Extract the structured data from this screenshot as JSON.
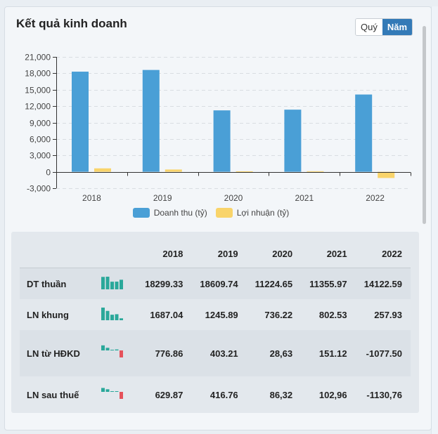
{
  "header": {
    "title": "Kết quả kinh doanh"
  },
  "toggle": {
    "quarter_label": "Quý",
    "year_label": "Năm",
    "active": "year"
  },
  "colors": {
    "revenue": "#4a9fd6",
    "profit": "#f9d46a",
    "spark_pos": "#2aa89a",
    "spark_neg": "#e5525b",
    "toggle_active": "#337ab7"
  },
  "chart_data": {
    "type": "bar",
    "title": "Kết quả kinh doanh",
    "categories": [
      "2018",
      "2019",
      "2020",
      "2021",
      "2022"
    ],
    "series": [
      {
        "name": "Doanh thu (tỷ)",
        "values": [
          18299.33,
          18609.74,
          11224.65,
          11355.97,
          14122.59
        ]
      },
      {
        "name": "Lợi nhuận (tỷ)",
        "values": [
          629.87,
          416.76,
          86.32,
          102.96,
          -1130.76
        ]
      }
    ],
    "ylim": [
      -3000,
      21000
    ],
    "yticks": [
      21000,
      18000,
      15000,
      12000,
      9000,
      6000,
      3000,
      0,
      -3000
    ],
    "ytick_labels": [
      "21,000",
      "18,000",
      "15,000",
      "12,000",
      "9,000",
      "6,000",
      "3,000",
      "0",
      "-3,000"
    ],
    "xlabel": "",
    "ylabel": "",
    "grid": true,
    "legend": "bottom"
  },
  "table": {
    "headers": [
      "",
      "",
      "2018",
      "2019",
      "2020",
      "2021",
      "2022"
    ],
    "rows": [
      {
        "label": "DT thuần",
        "spark": [
          18299.33,
          18609.74,
          11224.65,
          11355.97,
          14122.59
        ],
        "values": [
          "18299.33",
          "18609.74",
          "11224.65",
          "11355.97",
          "14122.59"
        ]
      },
      {
        "label": "LN khung",
        "spark": [
          1687.04,
          1245.89,
          736.22,
          802.53,
          257.93
        ],
        "values": [
          "1687.04",
          "1245.89",
          "736.22",
          "802.53",
          "257.93"
        ]
      },
      {
        "label": "LN từ HĐKD",
        "spark": [
          776.86,
          403.21,
          28.63,
          151.12,
          -1077.5
        ],
        "values": [
          "776.86",
          "403.21",
          "28,63",
          "151.12",
          "-1077.50"
        ]
      },
      {
        "label": "LN sau thuế",
        "spark": [
          629.87,
          416.76,
          86.32,
          102.96,
          -1130.76
        ],
        "values": [
          "629.87",
          "416.76",
          "86,32",
          "102,96",
          "-1130,76"
        ]
      }
    ]
  }
}
